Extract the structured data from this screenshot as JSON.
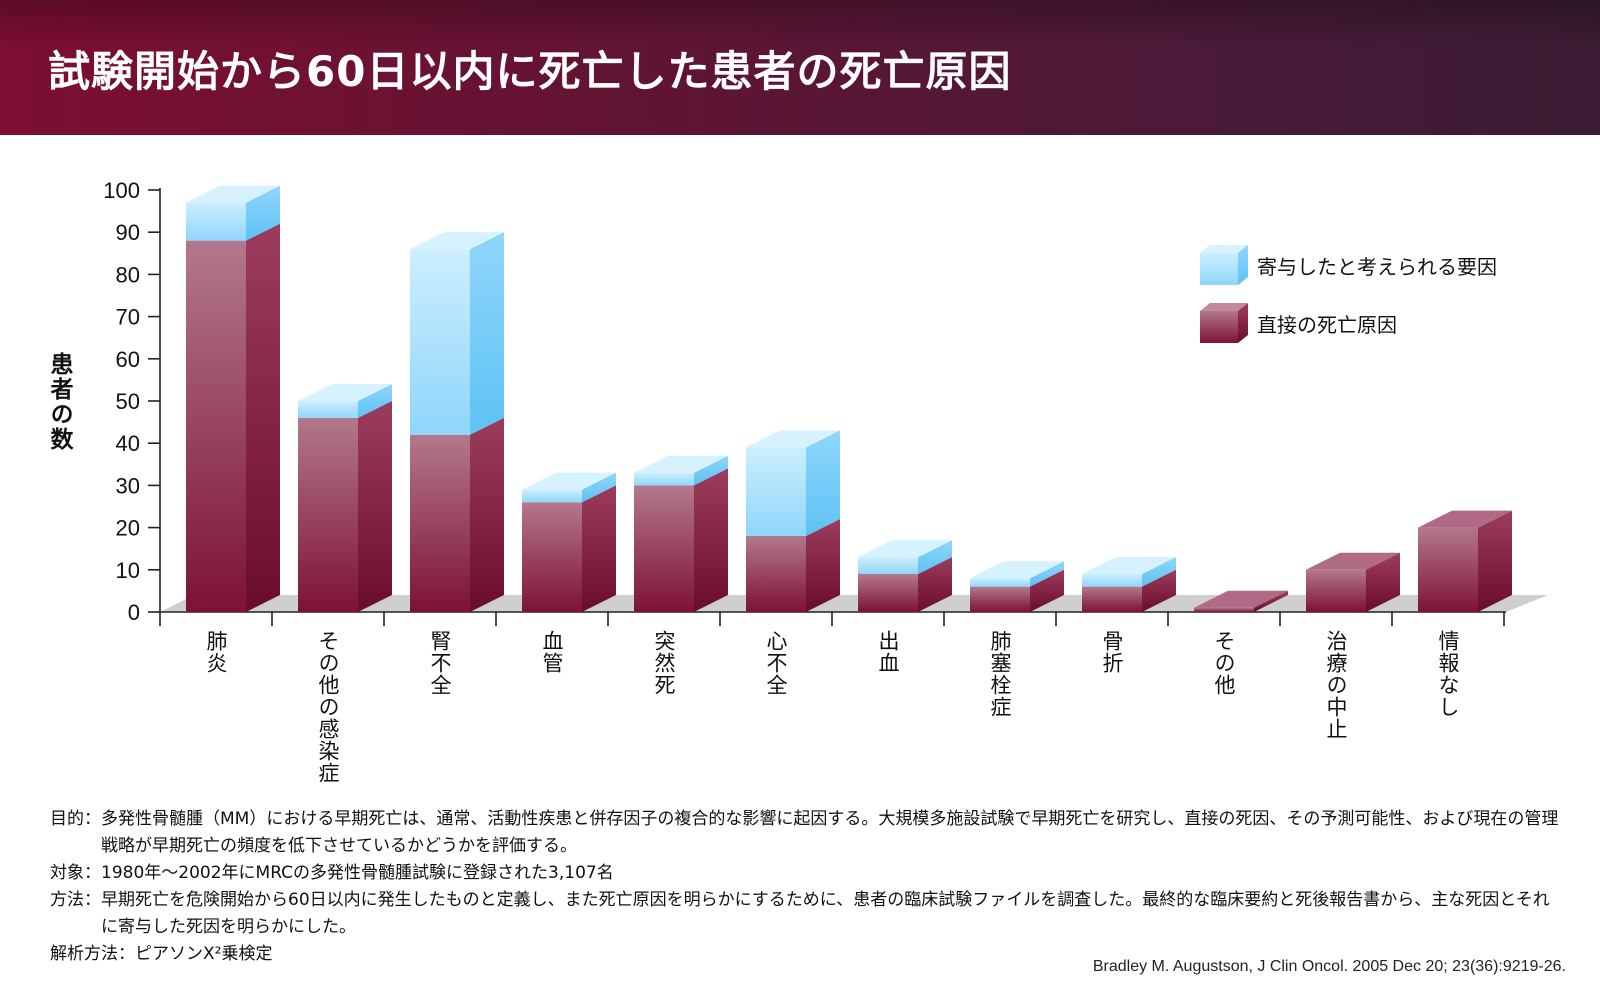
{
  "header": {
    "title": "試験開始から60日以内に死亡した患者の死亡原因"
  },
  "chart_data": {
    "type": "bar",
    "stacked": true,
    "ylabel": "患者の数",
    "ylim": [
      0,
      100
    ],
    "yticks": [
      0,
      10,
      20,
      30,
      40,
      50,
      60,
      70,
      80,
      90,
      100
    ],
    "categories": [
      "肺炎",
      "その他の感染症",
      "腎不全",
      "血管",
      "突然死",
      "心不全",
      "出血",
      "肺塞栓症",
      "骨折",
      "その他",
      "治療の中止",
      "情報なし"
    ],
    "series": [
      {
        "name": "直接の死亡原因",
        "color": "#8e1c48",
        "values": [
          88,
          46,
          42,
          26,
          30,
          18,
          9,
          6,
          6,
          1,
          10,
          20
        ]
      },
      {
        "name": "寄与したと考えられる要因",
        "color": "#6fc8f6",
        "values": [
          9,
          4,
          44,
          3,
          3,
          21,
          4,
          2,
          3,
          0,
          0,
          0
        ]
      }
    ],
    "legend_position": "top-right",
    "grid": false
  },
  "notes": [
    {
      "key": "目的：",
      "text": "多発性骨髄腫（MM）における早期死亡は、通常、活動性疾患と併存因子の複合的な影響に起因する。大規模多施設試験で早期死亡を研究し、直接の死因、その予測可能性、および現在の管理戦略が早期死亡の頻度を低下させているかどうかを評価する。"
    },
    {
      "key": "対象：",
      "text": "1980年〜2002年にMRCの多発性骨髄腫試験に登録された3,107名"
    },
    {
      "key": "方法：",
      "text": "早期死亡を危険開始から60日以内に発生したものと定義し、また死亡原因を明らかにするために、患者の臨床試験ファイルを調査した。最終的な臨床要約と死後報告書から、主な死因とそれに寄与した死因を明らかにした。"
    },
    {
      "key": "解析方法：",
      "text": "ピアソンX²乗検定"
    }
  ],
  "citation": "Bradley M. Augustson, J Clin Oncol. 2005 Dec 20; 23(36):9219-26."
}
